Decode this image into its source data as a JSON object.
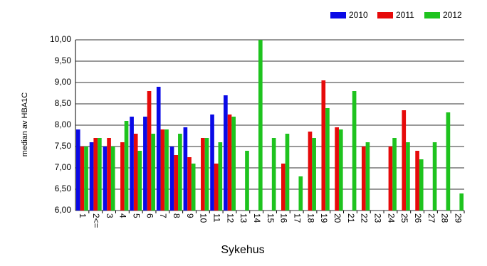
{
  "chart_data": {
    "type": "bar",
    "x_label": "Sykehus",
    "y_label": "median av HBA1C",
    "categories": [
      "1",
      "2<=",
      "3",
      "4",
      "5",
      "6",
      "7",
      "8",
      "9",
      "10",
      "11",
      "12",
      "13",
      "14",
      "15",
      "16",
      "17",
      "18",
      "19",
      "20",
      "21",
      "22",
      "23",
      "24",
      "25",
      "26",
      "27",
      "28",
      "29"
    ],
    "series": [
      {
        "name": "2010",
        "color": "#0a0ae6",
        "values": [
          7.9,
          7.6,
          7.5,
          null,
          8.2,
          8.2,
          8.9,
          7.5,
          7.95,
          null,
          8.25,
          8.7,
          null,
          null,
          null,
          null,
          null,
          null,
          null,
          null,
          null,
          null,
          null,
          null,
          null,
          null,
          null,
          null,
          null
        ]
      },
      {
        "name": "2011",
        "color": "#e60a0a",
        "values": [
          7.5,
          7.7,
          7.7,
          7.6,
          7.8,
          8.8,
          7.9,
          7.3,
          7.25,
          7.7,
          7.1,
          8.25,
          null,
          null,
          null,
          7.1,
          null,
          7.85,
          9.05,
          7.95,
          null,
          7.5,
          null,
          7.5,
          8.35,
          7.4,
          null,
          null,
          null
        ]
      },
      {
        "name": "2012",
        "color": "#1ec31e",
        "values": [
          7.5,
          7.7,
          7.5,
          8.1,
          7.4,
          7.8,
          7.9,
          7.8,
          7.1,
          7.7,
          7.6,
          8.2,
          7.4,
          10.0,
          7.7,
          7.8,
          6.8,
          7.7,
          8.4,
          7.9,
          8.8,
          7.6,
          null,
          7.7,
          7.6,
          7.2,
          7.6,
          8.3,
          6.4
        ]
      }
    ],
    "ylim": [
      6,
      10
    ],
    "yticks": [
      {
        "value": 6,
        "label": "6,00"
      },
      {
        "value": 6.5,
        "label": "6,50"
      },
      {
        "value": 7,
        "label": "7,00"
      },
      {
        "value": 7.5,
        "label": "7,50"
      },
      {
        "value": 8,
        "label": "8,00"
      },
      {
        "value": 8.5,
        "label": "8,50"
      },
      {
        "value": 9,
        "label": "9,00"
      },
      {
        "value": 9.5,
        "label": "9,50"
      },
      {
        "value": 10,
        "label": "10,00"
      }
    ],
    "grid": true,
    "legend": "top-right"
  }
}
